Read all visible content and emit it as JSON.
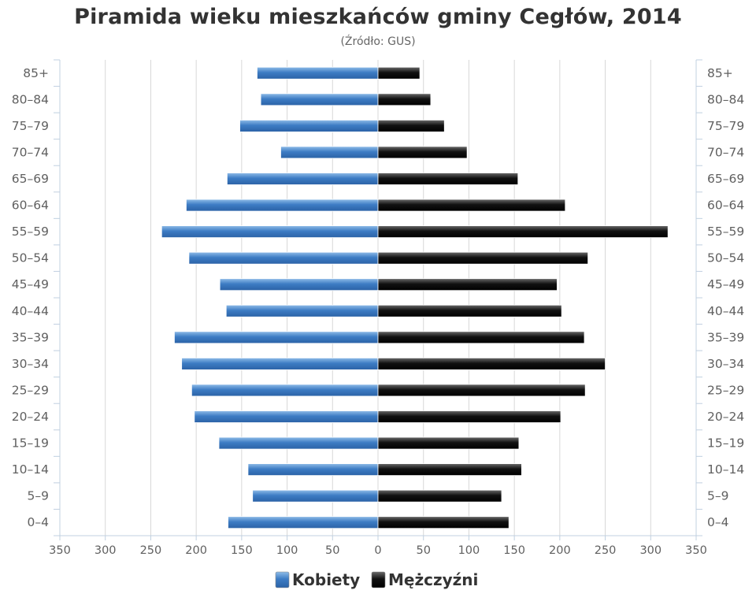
{
  "chart_data": {
    "type": "bar",
    "orientation": "horizontal",
    "title": "Piramida wieku mieszkańców gminy Cegłów, 2014",
    "subtitle": "(Źródło: GUS)",
    "categories": [
      "85+",
      "80–84",
      "75–79",
      "70–74",
      "65–69",
      "60–64",
      "55–59",
      "50–54",
      "45–49",
      "40–44",
      "35–39",
      "30–34",
      "25–29",
      "20–24",
      "15–19",
      "10–14",
      "5–9",
      "0–4"
    ],
    "series": [
      {
        "name": "Kobiety",
        "color": "#4a8ad0",
        "direction": "left",
        "values": [
          133,
          129,
          152,
          107,
          166,
          211,
          238,
          208,
          174,
          167,
          224,
          216,
          205,
          202,
          175,
          143,
          138,
          165
        ]
      },
      {
        "name": "Mężczyźni",
        "color": "#1a1a1a",
        "direction": "right",
        "values": [
          46,
          58,
          73,
          98,
          154,
          206,
          319,
          231,
          197,
          202,
          227,
          250,
          228,
          201,
          155,
          158,
          136,
          144
        ]
      }
    ],
    "x_ticks": [
      "350",
      "300",
      "250",
      "200",
      "150",
      "100",
      "50",
      "0",
      "50",
      "100",
      "150",
      "200",
      "250",
      "300",
      "350"
    ],
    "xlim": [
      -350,
      350
    ],
    "grid": true,
    "legend_position": "bottom-center"
  }
}
